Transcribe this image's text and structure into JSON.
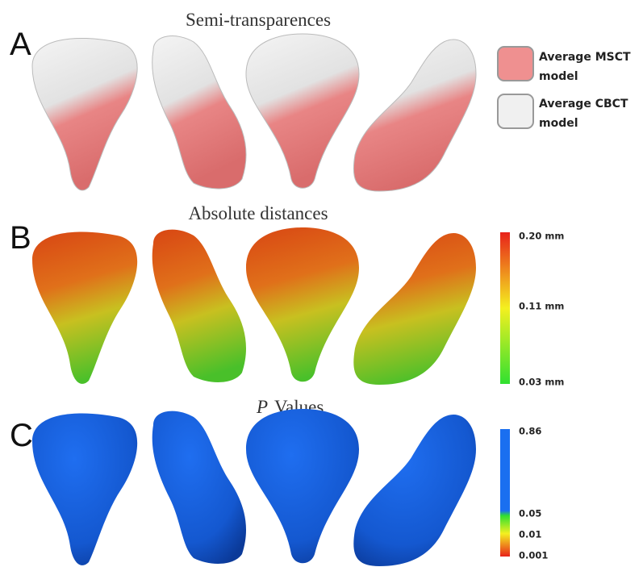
{
  "panels": [
    {
      "letter": "A",
      "title": "Semi-transparences",
      "legend": [
        {
          "label_lines": [
            "Average MSCT",
            "model"
          ]
        },
        {
          "label_lines": [
            "Average CBCT",
            "model"
          ]
        }
      ]
    },
    {
      "letter": "B",
      "title": "Absolute distances",
      "colorbar": [
        "0.20 mm",
        "0.11 mm",
        "0.03 mm"
      ]
    },
    {
      "letter": "C",
      "title_italic": "P",
      "title": "Values",
      "colorbar": [
        "0.86",
        "0.05",
        "0.01",
        "0.001"
      ]
    }
  ]
}
